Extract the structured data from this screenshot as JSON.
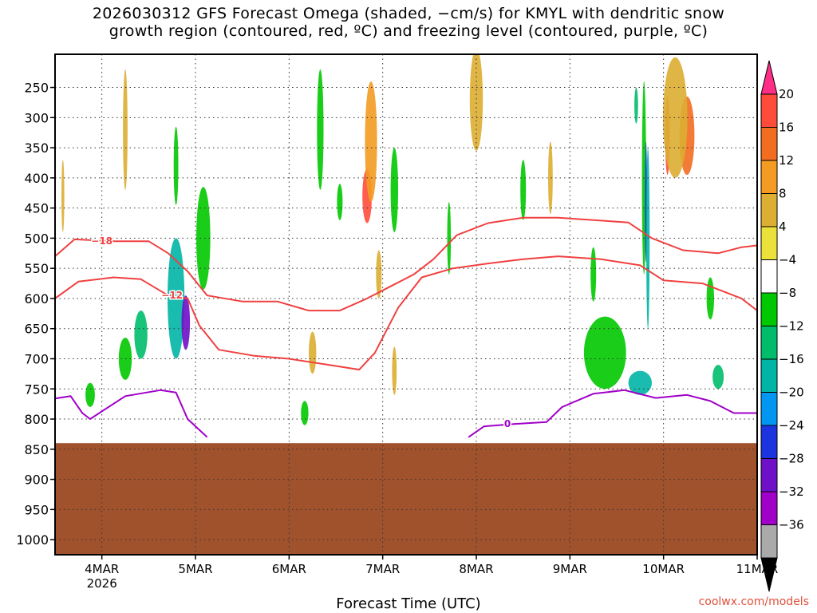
{
  "title": {
    "line1": "2026030312 GFS Forecast Omega (shaded, −cm/s) for KMYL with dendritic snow",
    "line2": "growth region (contoured, red, ºC) and freezing level (contoured, purple, ºC)"
  },
  "xlabel": "Forecast Time (UTC)",
  "credit": "coolwx.com/models",
  "chart_data": {
    "type": "heatmap",
    "y_axis": {
      "quantity": "pressure (hPa)",
      "inverted": true,
      "range": [
        1025,
        195
      ],
      "ticks": [
        250,
        300,
        350,
        400,
        450,
        500,
        550,
        600,
        650,
        700,
        750,
        800,
        850,
        900,
        950,
        1000
      ]
    },
    "x_axis": {
      "range": [
        "2026-03-03T12:00",
        "2026-03-11T00:00"
      ],
      "ticks": [
        {
          "label": "4MAR",
          "sub": "2026",
          "t": "2026-03-04T00:00"
        },
        {
          "label": "5MAR",
          "sub": "",
          "t": "2026-03-05T00:00"
        },
        {
          "label": "6MAR",
          "sub": "",
          "t": "2026-03-06T00:00"
        },
        {
          "label": "7MAR",
          "sub": "",
          "t": "2026-03-07T00:00"
        },
        {
          "label": "8MAR",
          "sub": "",
          "t": "2026-03-08T00:00"
        },
        {
          "label": "9MAR",
          "sub": "",
          "t": "2026-03-09T00:00"
        },
        {
          "label": "10MAR",
          "sub": "",
          "t": "2026-03-10T00:00"
        },
        {
          "label": "11MAR",
          "sub": "",
          "t": "2026-03-11T00:00"
        }
      ]
    },
    "grid": true,
    "terrain_pressure": 840,
    "colorbar": {
      "labels": [
        "20",
        "16",
        "12",
        "8",
        "4",
        "−4",
        "−8",
        "−12",
        "−16",
        "−20",
        "−24",
        "−28",
        "−32",
        "−36"
      ],
      "colors": [
        "#ff2e86",
        "#ff4b3a",
        "#f36d20",
        "#f39b22",
        "#dcae32",
        "#ece13b",
        "#ffffff",
        "#00c800",
        "#00bc6b",
        "#00b5a5",
        "#0096f2",
        "#1c34e0",
        "#6e10c8",
        "#a000c8",
        "#aaaaaa",
        "#000000"
      ]
    },
    "shading_blobs": [
      {
        "t": "2026-03-04T19:00",
        "p": 600,
        "dt": 0.18,
        "dp": 200,
        "v": -14
      },
      {
        "t": "2026-03-04T21:30",
        "p": 640,
        "dt": 0.09,
        "dp": 90,
        "v": -26
      },
      {
        "t": "2026-03-04T19:00",
        "p": 380,
        "dt": 0.05,
        "dp": 130,
        "v": -8
      },
      {
        "t": "2026-03-05T02:00",
        "p": 500,
        "dt": 0.15,
        "dp": 170,
        "v": -8
      },
      {
        "t": "2026-03-04T10:00",
        "p": 660,
        "dt": 0.14,
        "dp": 80,
        "v": -12
      },
      {
        "t": "2026-03-04T06:00",
        "p": 700,
        "dt": 0.14,
        "dp": 70,
        "v": -8
      },
      {
        "t": "2026-03-03T21:00",
        "p": 760,
        "dt": 0.1,
        "dp": 40,
        "v": -8
      },
      {
        "t": "2026-03-06T04:00",
        "p": 790,
        "dt": 0.08,
        "dp": 40,
        "v": -8
      },
      {
        "t": "2026-03-06T20:00",
        "p": 430,
        "dt": 0.1,
        "dp": 90,
        "v": 16
      },
      {
        "t": "2026-03-06T21:00",
        "p": 340,
        "dt": 0.13,
        "dp": 200,
        "v": 8
      },
      {
        "t": "2026-03-06T23:00",
        "p": 560,
        "dt": 0.06,
        "dp": 80,
        "v": 4
      },
      {
        "t": "2026-03-07T03:00",
        "p": 420,
        "dt": 0.08,
        "dp": 140,
        "v": -8
      },
      {
        "t": "2026-03-06T13:00",
        "p": 440,
        "dt": 0.06,
        "dp": 60,
        "v": -8
      },
      {
        "t": "2026-03-09T17:00",
        "p": 280,
        "dt": 0.04,
        "dp": 60,
        "v": -12
      },
      {
        "t": "2026-03-09T19:00",
        "p": 400,
        "dt": 0.045,
        "dp": 320,
        "v": -8
      },
      {
        "t": "2026-03-09T19:30",
        "p": 440,
        "dt": 0.022,
        "dp": 200,
        "v": -22
      },
      {
        "t": "2026-03-09T20:00",
        "p": 500,
        "dt": 0.035,
        "dp": 300,
        "v": -14
      },
      {
        "t": "2026-03-10T01:00",
        "p": 330,
        "dt": 0.05,
        "dp": 130,
        "v": 18
      },
      {
        "t": "2026-03-10T06:00",
        "p": 330,
        "dt": 0.16,
        "dp": 130,
        "v": 12
      },
      {
        "t": "2026-03-10T03:00",
        "p": 300,
        "dt": 0.26,
        "dp": 200,
        "v": 6
      },
      {
        "t": "2026-03-08T00:00",
        "p": 270,
        "dt": 0.14,
        "dp": 170,
        "v": 6
      },
      {
        "t": "2026-03-09T09:00",
        "p": 690,
        "dt": 0.45,
        "dp": 120,
        "v": -8
      },
      {
        "t": "2026-03-09T18:00",
        "p": 740,
        "dt": 0.25,
        "dp": 40,
        "v": -14
      },
      {
        "t": "2026-03-10T14:00",
        "p": 730,
        "dt": 0.12,
        "dp": 40,
        "v": -12
      },
      {
        "t": "2026-03-06T08:00",
        "p": 320,
        "dt": 0.07,
        "dp": 200,
        "v": -8
      },
      {
        "t": "2026-03-07T17:00",
        "p": 500,
        "dt": 0.04,
        "dp": 120,
        "v": -8
      },
      {
        "t": "2026-03-06T06:00",
        "p": 690,
        "dt": 0.08,
        "dp": 70,
        "v": 5
      },
      {
        "t": "2026-03-07T03:00",
        "p": 720,
        "dt": 0.05,
        "dp": 80,
        "v": 5
      },
      {
        "t": "2026-03-03T14:00",
        "p": 430,
        "dt": 0.03,
        "dp": 120,
        "v": 6
      },
      {
        "t": "2026-03-04T06:00",
        "p": 320,
        "dt": 0.05,
        "dp": 200,
        "v": 5
      },
      {
        "t": "2026-03-08T12:00",
        "p": 420,
        "dt": 0.06,
        "dp": 100,
        "v": -8
      },
      {
        "t": "2026-03-08T19:00",
        "p": 400,
        "dt": 0.05,
        "dp": 120,
        "v": 6
      },
      {
        "t": "2026-03-09T06:00",
        "p": 560,
        "dt": 0.06,
        "dp": 90,
        "v": -8
      },
      {
        "t": "2026-03-10T12:00",
        "p": 600,
        "dt": 0.08,
        "dp": 70,
        "v": -8
      }
    ],
    "contours": [
      {
        "level": -18,
        "color": "#f04040",
        "label": "−18",
        "points": [
          [
            "2026-03-03T12:00",
            530
          ],
          [
            "2026-03-03T17:00",
            502
          ],
          [
            "2026-03-04T03:00",
            505
          ],
          [
            "2026-03-04T12:00",
            505
          ],
          [
            "2026-03-04T17:00",
            525
          ],
          [
            "2026-03-04T22:00",
            555
          ],
          [
            "2026-03-05T03:00",
            595
          ],
          [
            "2026-03-05T12:00",
            605
          ],
          [
            "2026-03-05T21:00",
            605
          ],
          [
            "2026-03-06T05:00",
            620
          ],
          [
            "2026-03-06T13:00",
            620
          ],
          [
            "2026-03-06T20:00",
            600
          ],
          [
            "2026-03-07T02:00",
            580
          ],
          [
            "2026-03-07T08:00",
            560
          ],
          [
            "2026-03-07T13:00",
            535
          ],
          [
            "2026-03-07T19:00",
            495
          ],
          [
            "2026-03-08T03:00",
            475
          ],
          [
            "2026-03-08T12:00",
            466
          ],
          [
            "2026-03-08T21:00",
            466
          ],
          [
            "2026-03-09T06:00",
            470
          ],
          [
            "2026-03-09T15:00",
            474
          ],
          [
            "2026-03-09T21:00",
            500
          ],
          [
            "2026-03-10T05:00",
            520
          ],
          [
            "2026-03-10T14:00",
            525
          ],
          [
            "2026-03-10T20:00",
            515
          ],
          [
            "2026-03-11T00:00",
            512
          ]
        ],
        "label_at": "2026-03-04T00:00"
      },
      {
        "level": -12,
        "color": "#f04040",
        "label": "−12",
        "points": [
          [
            "2026-03-03T12:00",
            600
          ],
          [
            "2026-03-03T18:00",
            572
          ],
          [
            "2026-03-04T03:00",
            565
          ],
          [
            "2026-03-04T10:00",
            568
          ],
          [
            "2026-03-04T17:00",
            595
          ],
          [
            "2026-03-04T22:00",
            600
          ],
          [
            "2026-03-05T01:00",
            645
          ],
          [
            "2026-03-05T06:00",
            685
          ],
          [
            "2026-03-05T15:00",
            695
          ],
          [
            "2026-03-06T00:00",
            700
          ],
          [
            "2026-03-06T10:00",
            710
          ],
          [
            "2026-03-06T18:00",
            718
          ],
          [
            "2026-03-06T22:00",
            690
          ],
          [
            "2026-03-07T04:00",
            615
          ],
          [
            "2026-03-07T10:00",
            565
          ],
          [
            "2026-03-07T18:00",
            550
          ],
          [
            "2026-03-08T03:00",
            542
          ],
          [
            "2026-03-08T12:00",
            535
          ],
          [
            "2026-03-08T21:00",
            530
          ],
          [
            "2026-03-09T08:00",
            535
          ],
          [
            "2026-03-09T18:00",
            545
          ],
          [
            "2026-03-10T00:00",
            570
          ],
          [
            "2026-03-10T10:00",
            575
          ],
          [
            "2026-03-10T20:00",
            600
          ],
          [
            "2026-03-11T00:00",
            620
          ]
        ],
        "label_at": "2026-03-04T18:00"
      },
      {
        "level": 0,
        "color": "#a000c8",
        "label": "0",
        "points": [
          [
            "2026-03-03T12:00",
            766
          ],
          [
            "2026-03-03T16:00",
            762
          ],
          [
            "2026-03-03T19:00",
            790
          ],
          [
            "2026-03-03T21:00",
            800
          ],
          [
            "2026-03-04T06:00",
            762
          ],
          [
            "2026-03-04T15:00",
            752
          ],
          [
            "2026-03-04T19:00",
            756
          ],
          [
            "2026-03-04T22:00",
            800
          ],
          [
            "2026-03-05T03:00",
            830
          ]
        ],
        "label_at": ""
      },
      {
        "level": 0,
        "color": "#a000c8",
        "label": "0",
        "points": [
          [
            "2026-03-07T22:00",
            830
          ],
          [
            "2026-03-08T02:00",
            812
          ],
          [
            "2026-03-08T10:00",
            808
          ],
          [
            "2026-03-08T18:00",
            805
          ],
          [
            "2026-03-08T22:00",
            780
          ],
          [
            "2026-03-09T06:00",
            758
          ],
          [
            "2026-03-09T14:00",
            752
          ],
          [
            "2026-03-09T22:00",
            765
          ],
          [
            "2026-03-10T06:00",
            760
          ],
          [
            "2026-03-10T12:00",
            770
          ],
          [
            "2026-03-10T18:00",
            790
          ],
          [
            "2026-03-11T00:00",
            790
          ]
        ],
        "label_at": "2026-03-08T08:00"
      }
    ]
  }
}
